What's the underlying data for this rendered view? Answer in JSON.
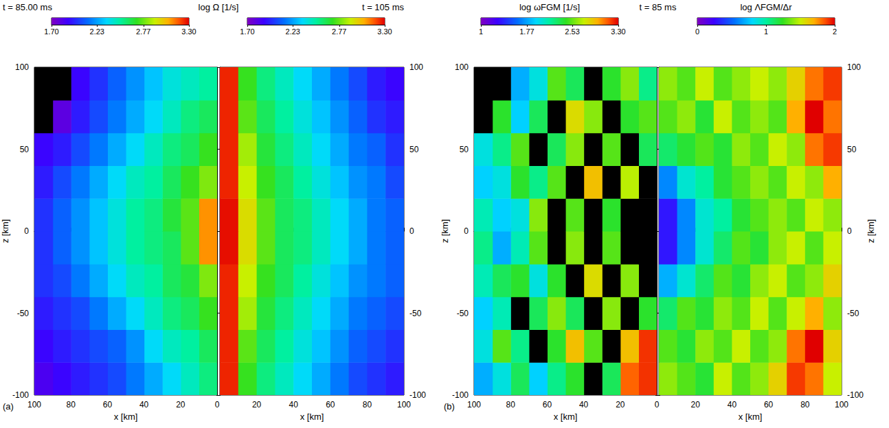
{
  "chart_data": [
    {
      "type": "heatmap",
      "label": "(a)",
      "title": "log Ω [1/s]",
      "xlabel": "x [km]",
      "xlim": [
        0,
        100
      ],
      "xticks": [
        0,
        20,
        40,
        60,
        80,
        100
      ],
      "ylim": [
        -100,
        100
      ],
      "yticks": [
        -100,
        -50,
        0,
        50,
        100
      ],
      "halves": [
        {
          "time": "t = 85.00 ms",
          "ylabel": "z [km]",
          "colorbar": {
            "range": [
              1.7,
              3.3
            ],
            "ticks": [
              {
                "value": 1.7,
                "label": "1.70"
              },
              2.23,
              2.77,
              {
                "value": 3.3,
                "label": "3.30"
              }
            ]
          },
          "x": [
            5,
            15,
            25,
            35,
            45,
            55,
            65,
            75,
            85,
            95
          ],
          "z": [
            -90,
            -70,
            -50,
            -30,
            -10,
            10,
            30,
            50,
            70,
            90
          ],
          "cells": [
            [
              2.55,
              2.45,
              2.35,
              2.25,
              2.15,
              2.05,
              2.0,
              1.95,
              1.9,
              1.85
            ],
            [
              2.6,
              2.5,
              2.45,
              2.35,
              2.2,
              2.1,
              2.05,
              2.0,
              1.95,
              1.9
            ],
            [
              2.7,
              2.6,
              2.55,
              2.45,
              2.35,
              2.25,
              2.15,
              2.05,
              2.0,
              1.95
            ],
            [
              2.8,
              2.65,
              2.6,
              2.5,
              2.45,
              2.35,
              2.25,
              2.15,
              2.05,
              2.0
            ],
            [
              3.1,
              2.75,
              2.6,
              2.55,
              2.5,
              2.4,
              2.3,
              2.2,
              2.1,
              2.0
            ],
            [
              3.1,
              2.75,
              2.65,
              2.55,
              2.5,
              2.4,
              2.3,
              2.2,
              2.1,
              2.0
            ],
            [
              2.8,
              2.7,
              2.6,
              2.5,
              2.45,
              2.35,
              2.25,
              2.15,
              2.05,
              1.95
            ],
            [
              2.7,
              2.6,
              2.55,
              2.45,
              2.35,
              2.25,
              2.15,
              2.05,
              1.95,
              1.9
            ],
            [
              2.6,
              2.55,
              2.45,
              2.35,
              2.25,
              2.15,
              2.05,
              1.95,
              1.8,
              1.6
            ],
            [
              2.5,
              2.45,
              2.4,
              2.3,
              2.2,
              2.1,
              2.0,
              1.9,
              1.6,
              1.6
            ]
          ]
        },
        {
          "time": "t = 105 ms",
          "colorbar": {
            "range": [
              1.7,
              3.3
            ],
            "ticks": [
              {
                "value": 1.7,
                "label": "1.70"
              },
              2.23,
              2.77,
              {
                "value": 3.3,
                "label": "3.30"
              }
            ]
          },
          "x": [
            5,
            15,
            25,
            35,
            45,
            55,
            65,
            75,
            85,
            95
          ],
          "z": [
            -90,
            -70,
            -50,
            -30,
            -10,
            10,
            30,
            50,
            70,
            90
          ],
          "cells": [
            [
              3.25,
              2.7,
              2.55,
              2.45,
              2.35,
              2.25,
              2.15,
              2.05,
              2.0,
              1.95
            ],
            [
              3.25,
              2.75,
              2.6,
              2.5,
              2.4,
              2.3,
              2.2,
              2.1,
              2.05,
              2.0
            ],
            [
              3.25,
              2.85,
              2.65,
              2.55,
              2.45,
              2.35,
              2.25,
              2.15,
              2.1,
              2.05
            ],
            [
              3.25,
              2.9,
              2.7,
              2.6,
              2.5,
              2.4,
              2.3,
              2.2,
              2.15,
              2.1
            ],
            [
              3.28,
              2.95,
              2.75,
              2.6,
              2.55,
              2.45,
              2.35,
              2.25,
              2.15,
              2.1
            ],
            [
              3.28,
              2.95,
              2.75,
              2.6,
              2.55,
              2.45,
              2.35,
              2.25,
              2.15,
              2.1
            ],
            [
              3.25,
              2.9,
              2.7,
              2.6,
              2.5,
              2.4,
              2.3,
              2.2,
              2.15,
              2.05
            ],
            [
              3.25,
              2.85,
              2.65,
              2.55,
              2.45,
              2.35,
              2.25,
              2.15,
              2.1,
              2.0
            ],
            [
              3.25,
              2.75,
              2.6,
              2.5,
              2.4,
              2.3,
              2.2,
              2.1,
              2.0,
              1.95
            ],
            [
              3.25,
              2.7,
              2.55,
              2.45,
              2.35,
              2.25,
              2.15,
              2.05,
              1.95,
              1.9
            ]
          ]
        }
      ]
    },
    {
      "type": "heatmap",
      "label": "(b)",
      "time": "t = 85 ms",
      "xlabel": "x [km]",
      "xlim": [
        0,
        100
      ],
      "xticks": [
        0,
        20,
        40,
        60,
        80,
        100
      ],
      "ylim": [
        -100,
        100
      ],
      "yticks": [
        -100,
        -50,
        0,
        50,
        100
      ],
      "halves": [
        {
          "ylabel": "z [km]",
          "colorbar": {
            "title": "log ωFGM [1/s]",
            "range": [
              1,
              3.3
            ],
            "ticks": [
              1,
              1.77,
              2.53,
              {
                "value": 3.3,
                "label": "3.30"
              }
            ]
          },
          "x": [
            5,
            15,
            25,
            35,
            45,
            55,
            65,
            75,
            85,
            95
          ],
          "z": [
            -90,
            -70,
            -50,
            -30,
            -10,
            10,
            30,
            50,
            70,
            90
          ],
          "cells": [
            [
              3.2,
              3.1,
              2.3,
              0.5,
              2.4,
              2.2,
              1.9,
              2.3,
              2.0,
              1.8
            ],
            [
              3.2,
              2.9,
              0.5,
              2.5,
              2.9,
              2.4,
              0.5,
              2.2,
              2.5,
              2.0
            ],
            [
              2.4,
              0.5,
              2.6,
              0.5,
              2.3,
              2.6,
              2.3,
              0.5,
              2.1,
              1.9
            ],
            [
              0.5,
              2.6,
              0.5,
              2.8,
              0.5,
              2.4,
              2.0,
              2.4,
              2.3,
              2.1
            ],
            [
              0.5,
              0.5,
              2.5,
              0.5,
              2.6,
              0.5,
              2.5,
              2.1,
              1.8,
              2.2
            ],
            [
              0.5,
              0.5,
              2.4,
              0.5,
              2.5,
              0.5,
              2.6,
              2.0,
              1.9,
              2.1
            ],
            [
              0.5,
              2.7,
              0.5,
              2.9,
              0.5,
              2.5,
              2.2,
              2.4,
              2.0,
              1.9
            ],
            [
              2.3,
              0.5,
              2.5,
              0.5,
              2.6,
              2.3,
              0.5,
              2.5,
              2.2,
              2.0
            ],
            [
              2.5,
              2.4,
              0.5,
              2.6,
              2.8,
              0.5,
              2.3,
              1.9,
              2.4,
              0.5
            ],
            [
              2.2,
              2.6,
              2.4,
              0.5,
              2.3,
              2.5,
              2.0,
              1.8,
              0.5,
              0.5
            ]
          ]
        },
        {
          "ylabel": "z [km]",
          "colorbar": {
            "title": "log ΛFGM/Δr",
            "range": [
              0,
              2
            ],
            "ticks": [
              0,
              1,
              2
            ]
          },
          "x": [
            5,
            15,
            25,
            35,
            45,
            55,
            65,
            75,
            85,
            95
          ],
          "z": [
            -90,
            -70,
            -50,
            -30,
            -10,
            10,
            30,
            50,
            70,
            90
          ],
          "cells": [
            [
              1.4,
              1.3,
              1.2,
              1.5,
              1.3,
              1.4,
              1.6,
              1.9,
              1.8,
              1.5
            ],
            [
              1.3,
              1.2,
              1.4,
              1.3,
              1.5,
              1.3,
              1.4,
              1.8,
              2.0,
              1.6
            ],
            [
              1.1,
              1.3,
              1.2,
              1.4,
              1.3,
              1.5,
              1.3,
              1.5,
              1.7,
              1.4
            ],
            [
              0.7,
              0.9,
              1.1,
              1.3,
              1.2,
              1.4,
              1.5,
              1.3,
              1.4,
              1.6
            ],
            [
              0.3,
              0.6,
              0.9,
              1.1,
              1.3,
              1.2,
              1.4,
              1.5,
              1.3,
              1.5
            ],
            [
              0.3,
              0.6,
              0.9,
              1.0,
              1.2,
              1.3,
              1.4,
              1.3,
              1.5,
              1.4
            ],
            [
              0.6,
              0.9,
              1.0,
              1.2,
              1.3,
              1.4,
              1.3,
              1.5,
              1.4,
              1.7
            ],
            [
              1.1,
              1.2,
              1.3,
              1.2,
              1.4,
              1.3,
              1.5,
              1.4,
              1.8,
              1.9
            ],
            [
              1.3,
              1.4,
              1.2,
              1.5,
              1.3,
              1.4,
              1.3,
              1.7,
              2.0,
              1.8
            ],
            [
              1.4,
              1.3,
              1.5,
              1.3,
              1.4,
              1.5,
              1.4,
              1.6,
              1.8,
              1.9
            ]
          ]
        }
      ]
    }
  ]
}
